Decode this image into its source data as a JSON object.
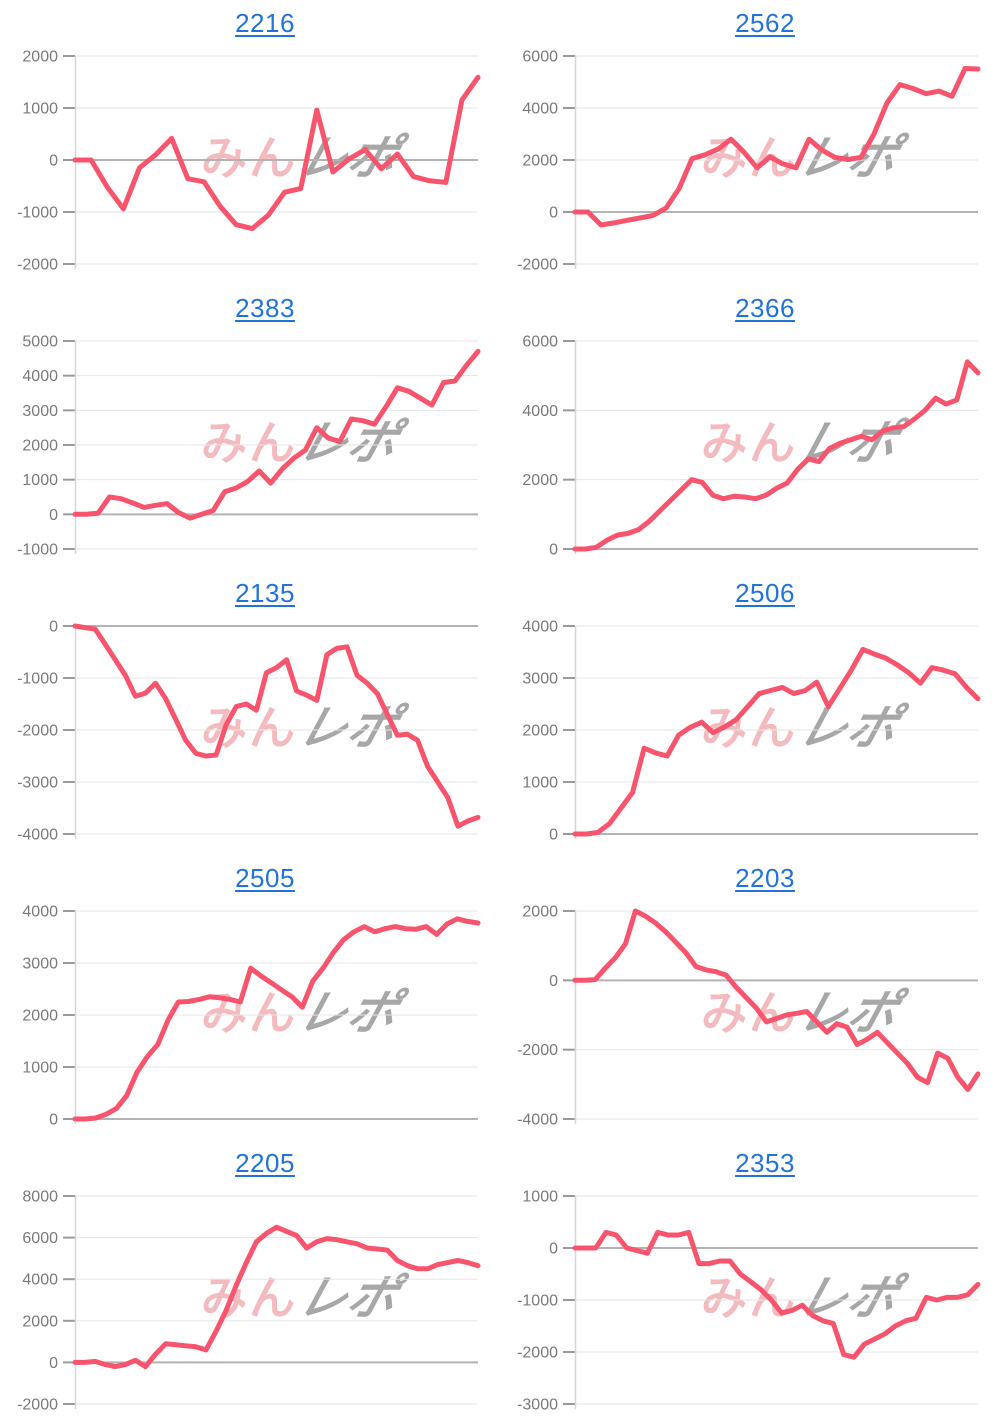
{
  "page": {
    "background": "#ffffff",
    "description": "Grid of 10 daily cumulative payout line charts, each titled with a machine number link"
  },
  "colors": {
    "line": "#f9546e",
    "gridline": "#e6e6e6",
    "zero_line": "#b3b3b3",
    "axis_line": "#d6d6d6",
    "tick_dash": "#9a9a9a",
    "tick_label": "#7a7a7a",
    "title_link": "#2273d8",
    "watermark_pink": "rgba(236,146,152,0.62)",
    "watermark_gray": "rgba(148,148,148,0.82)"
  },
  "watermark": {
    "pink_text": "みん",
    "gray_text": "レポ"
  },
  "chart_data": [
    {
      "title": "2216",
      "type": "line",
      "ylim": [
        -2000,
        2000
      ],
      "yticks": [
        2000,
        1000,
        0,
        -1000,
        -2000
      ],
      "values": [
        0,
        0,
        -520,
        -940,
        -150,
        100,
        415,
        -360,
        -420,
        -890,
        -1245,
        -1320,
        -1060,
        -620,
        -550,
        960,
        -230,
        20,
        200,
        -170,
        115,
        -320,
        -400,
        -430,
        1150,
        1590
      ]
    },
    {
      "title": "2562",
      "type": "line",
      "ylim": [
        -2000,
        6000
      ],
      "yticks": [
        6000,
        4000,
        2000,
        0,
        -2000
      ],
      "values": [
        0,
        0,
        -500,
        -420,
        -320,
        -230,
        -130,
        150,
        900,
        2050,
        2200,
        2420,
        2800,
        2300,
        1700,
        2120,
        1850,
        1700,
        2800,
        2380,
        2100,
        2020,
        2100,
        3000,
        4200,
        4900,
        4750,
        4550,
        4650,
        4450,
        5520,
        5500
      ]
    },
    {
      "title": "2383",
      "type": "line",
      "ylim": [
        -1000,
        5000
      ],
      "yticks": [
        5000,
        4000,
        3000,
        2000,
        1000,
        0,
        -1000
      ],
      "values": [
        0,
        0,
        30,
        500,
        450,
        330,
        200,
        260,
        310,
        50,
        -110,
        0,
        110,
        650,
        760,
        950,
        1250,
        900,
        1310,
        1620,
        1850,
        2500,
        2200,
        2100,
        2750,
        2700,
        2600,
        3100,
        3650,
        3550,
        3350,
        3150,
        3800,
        3850,
        4300,
        4700
      ]
    },
    {
      "title": "2366",
      "type": "line",
      "ylim": [
        0,
        6000
      ],
      "yticks": [
        6000,
        4000,
        2000,
        0
      ],
      "values": [
        0,
        0,
        50,
        250,
        400,
        450,
        560,
        800,
        1100,
        1400,
        1700,
        2000,
        1920,
        1550,
        1450,
        1520,
        1500,
        1450,
        1550,
        1750,
        1900,
        2300,
        2600,
        2520,
        2900,
        3050,
        3150,
        3250,
        3150,
        3400,
        3500,
        3530,
        3750,
        4000,
        4350,
        4180,
        4300,
        5400,
        5080
      ]
    },
    {
      "title": "2135",
      "type": "line",
      "ylim": [
        -4000,
        0
      ],
      "yticks": [
        0,
        -1000,
        -2000,
        -3000,
        -4000
      ],
      "values": [
        0,
        -30,
        -60,
        -350,
        -650,
        -950,
        -1350,
        -1290,
        -1100,
        -1400,
        -1800,
        -2200,
        -2450,
        -2500,
        -2480,
        -1900,
        -1550,
        -1500,
        -1620,
        -900,
        -800,
        -650,
        -1250,
        -1330,
        -1430,
        -550,
        -430,
        -400,
        -950,
        -1100,
        -1300,
        -1700,
        -2100,
        -2080,
        -2200,
        -2700,
        -3000,
        -3300,
        -3850,
        -3750,
        -3680
      ]
    },
    {
      "title": "2506",
      "type": "line",
      "ylim": [
        0,
        4000
      ],
      "yticks": [
        4000,
        3000,
        2000,
        1000,
        0
      ],
      "values": [
        0,
        0,
        30,
        200,
        500,
        800,
        1650,
        1560,
        1500,
        1900,
        2050,
        2150,
        1950,
        2060,
        2200,
        2450,
        2700,
        2760,
        2820,
        2700,
        2760,
        2920,
        2450,
        2800,
        3150,
        3550,
        3460,
        3380,
        3250,
        3100,
        2900,
        3200,
        3150,
        3080,
        2820,
        2600
      ]
    },
    {
      "title": "2505",
      "type": "line",
      "ylim": [
        0,
        4000
      ],
      "yticks": [
        4000,
        3000,
        2000,
        1000,
        0
      ],
      "values": [
        0,
        0,
        20,
        90,
        200,
        450,
        900,
        1200,
        1430,
        1900,
        2250,
        2260,
        2300,
        2350,
        2330,
        2300,
        2250,
        2900,
        2750,
        2620,
        2480,
        2350,
        2150,
        2650,
        2900,
        3200,
        3450,
        3600,
        3700,
        3600,
        3660,
        3700,
        3660,
        3650,
        3700,
        3550,
        3750,
        3850,
        3800,
        3770
      ]
    },
    {
      "title": "2203",
      "type": "line",
      "ylim": [
        -4000,
        2000
      ],
      "yticks": [
        2000,
        0,
        -2000,
        -4000
      ],
      "values": [
        0,
        0,
        20,
        350,
        650,
        1050,
        2000,
        1850,
        1650,
        1400,
        1100,
        800,
        400,
        300,
        250,
        150,
        -200,
        -500,
        -800,
        -1200,
        -1100,
        -1000,
        -950,
        -900,
        -1200,
        -1500,
        -1250,
        -1350,
        -1850,
        -1700,
        -1500,
        -1800,
        -2100,
        -2400,
        -2800,
        -2950,
        -2100,
        -2250,
        -2800,
        -3150,
        -2700
      ]
    },
    {
      "title": "2205",
      "type": "line",
      "ylim": [
        -2000,
        8000
      ],
      "yticks": [
        8000,
        6000,
        4000,
        2000,
        0,
        -2000
      ],
      "values": [
        0,
        0,
        50,
        -100,
        -200,
        -100,
        100,
        -200,
        400,
        900,
        850,
        800,
        750,
        600,
        1500,
        2500,
        3700,
        4800,
        5800,
        6200,
        6500,
        6300,
        6100,
        5500,
        5800,
        5950,
        5900,
        5800,
        5700,
        5500,
        5450,
        5400,
        4900,
        4650,
        4500,
        4500,
        4700,
        4800,
        4900,
        4800,
        4650
      ]
    },
    {
      "title": "2353",
      "type": "line",
      "ylim": [
        -3000,
        1000
      ],
      "yticks": [
        1000,
        0,
        -1000,
        -2000,
        -3000
      ],
      "values": [
        0,
        0,
        0,
        300,
        250,
        0,
        -50,
        -100,
        300,
        250,
        250,
        300,
        -300,
        -300,
        -250,
        -250,
        -500,
        -650,
        -800,
        -1000,
        -1250,
        -1200,
        -1100,
        -1300,
        -1400,
        -1450,
        -2050,
        -2100,
        -1850,
        -1750,
        -1650,
        -1500,
        -1400,
        -1350,
        -950,
        -1000,
        -950,
        -950,
        -900,
        -700
      ]
    }
  ],
  "layout_hints": {
    "grid": "2 columns x 5 rows",
    "x_axis_labels": "none visible",
    "legend": "none"
  }
}
